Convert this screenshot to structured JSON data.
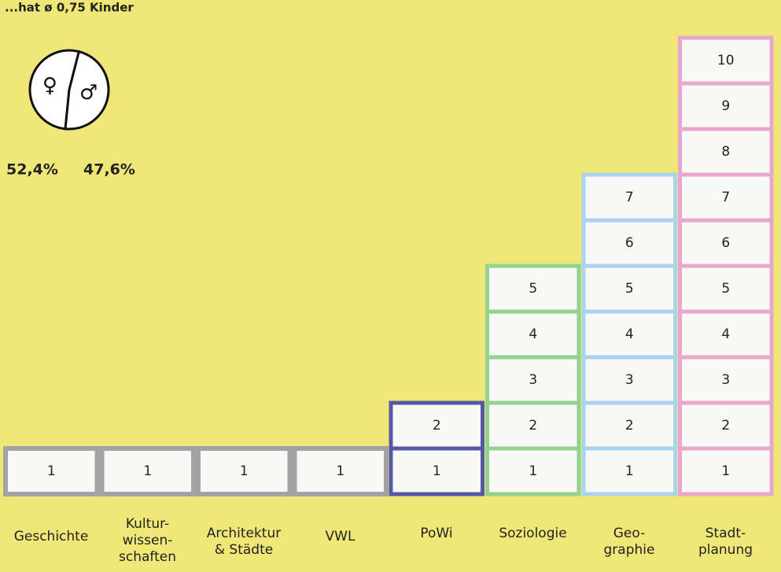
{
  "chart_data": [
    {
      "type": "pie",
      "title": "...hat ø 0,75 Kinder",
      "categories": [
        "♀",
        "♂"
      ],
      "values": [
        52.4,
        47.6
      ],
      "value_labels": [
        "52,4%",
        "47,6%"
      ]
    },
    {
      "type": "pictogram_bar",
      "categories": [
        "Geschichte",
        "Kultur-\nwissen-\nschaften",
        "Architektur\n& Städte",
        "VWL",
        "PoWi",
        "Soziologie",
        "Geo-\ngraphie",
        "Stadt-\nplanung"
      ],
      "colors": [
        "#a3a3a3",
        "#a3a3a3",
        "#a3a3a3",
        "#a3a3a3",
        "#5458a6",
        "#93d18f",
        "#a9d3ee",
        "#eaa7cd"
      ],
      "values": [
        [
          1
        ],
        [
          1
        ],
        [
          1
        ],
        [
          1
        ],
        [
          1,
          2
        ],
        [
          1,
          2,
          3,
          4,
          5
        ],
        [
          1,
          2,
          3,
          4,
          5,
          6,
          7
        ],
        [
          1,
          2,
          3,
          4,
          5,
          6,
          7,
          8,
          9,
          10
        ]
      ]
    }
  ]
}
